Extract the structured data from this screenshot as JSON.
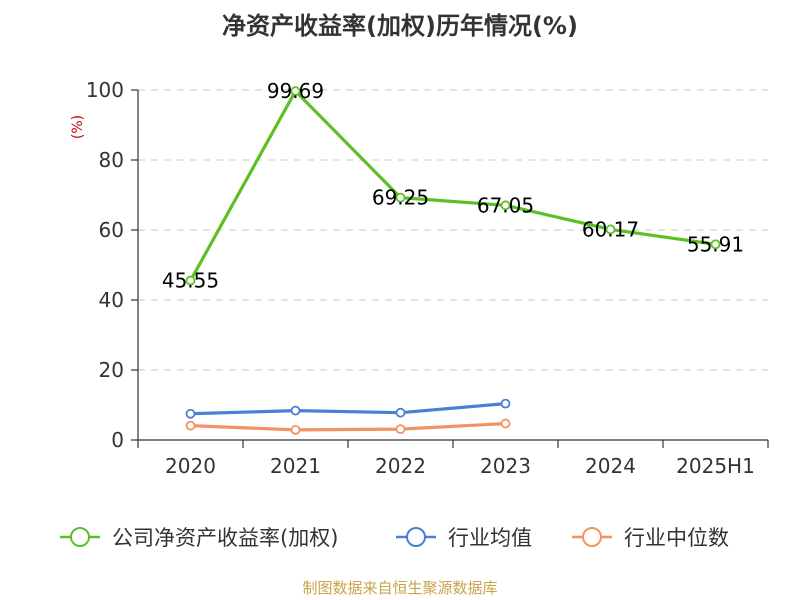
{
  "chart_data": {
    "type": "line",
    "title": "净资产收益率(加权)历年情况(%)",
    "ylabel": "(%)",
    "xlabel": "",
    "categories": [
      "2020",
      "2021",
      "2022",
      "2023",
      "2024",
      "2025H1"
    ],
    "ylim": [
      0,
      100
    ],
    "yticks": [
      0,
      20,
      40,
      60,
      80,
      100
    ],
    "grid": true,
    "legend_position": "bottom",
    "series": [
      {
        "name": "公司净资产收益率(加权)",
        "color": "#5cc025",
        "values": [
          45.55,
          99.69,
          69.25,
          67.05,
          60.17,
          55.91
        ],
        "labels": [
          "45.55",
          "99.69",
          "69.25",
          "67.05",
          "60.17",
          "55.91"
        ]
      },
      {
        "name": "行业均值",
        "color": "#4a7fd8",
        "values": [
          7.5,
          8.4,
          7.8,
          10.4,
          null,
          null
        ]
      },
      {
        "name": "行业中位数",
        "color": "#f39263",
        "values": [
          4.1,
          2.9,
          3.1,
          4.7,
          null,
          null
        ]
      }
    ]
  },
  "footer": {
    "source": "制图数据来自恒生聚源数据库"
  }
}
